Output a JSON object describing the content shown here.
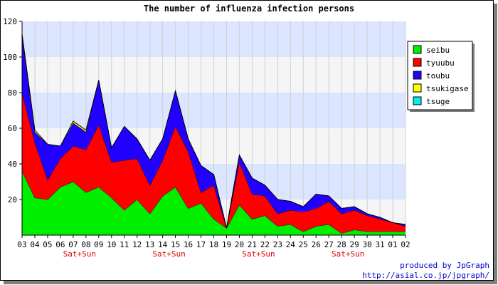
{
  "chart_data": {
    "type": "area",
    "stacked": true,
    "title": "The number of influenza infection persons",
    "xlabel": "",
    "ylabel": "",
    "ylim": [
      0,
      120
    ],
    "yticks": [
      20,
      40,
      60,
      80,
      100,
      120
    ],
    "y_tick_labels": [
      "20",
      "40",
      "60",
      "80",
      "100",
      "120"
    ],
    "categories": [
      "03",
      "04",
      "05",
      "06",
      "07",
      "08",
      "09",
      "10",
      "11",
      "12",
      "13",
      "14",
      "15",
      "16",
      "17",
      "18",
      "19",
      "20",
      "21",
      "22",
      "23",
      "24",
      "25",
      "26",
      "27",
      "28",
      "29",
      "30",
      "31",
      "01",
      "02"
    ],
    "weekend_markers": [
      {
        "after_category": "07",
        "label": "Sat+Sun"
      },
      {
        "after_category": "14",
        "label": "Sat+Sun"
      },
      {
        "after_category": "21",
        "label": "Sat+Sun"
      },
      {
        "after_category": "28",
        "label": "Sat+Sun"
      }
    ],
    "series": [
      {
        "name": "seibu",
        "color": "#00ee00",
        "values": [
          36,
          21,
          20,
          27,
          30,
          24,
          27,
          21,
          14,
          20,
          12,
          22,
          27,
          15,
          18,
          9,
          4,
          17,
          9,
          11,
          5,
          6,
          2,
          5,
          6,
          1,
          3,
          2,
          2,
          2,
          2
        ]
      },
      {
        "name": "tyuubu",
        "color": "#ff0000",
        "values": [
          44,
          31,
          11,
          16,
          20,
          24,
          35,
          20,
          28,
          23,
          16,
          20,
          34,
          32,
          6,
          19,
          0,
          24,
          14,
          11,
          7,
          8,
          11,
          10,
          13,
          11,
          11,
          9,
          7,
          5,
          3
        ]
      },
      {
        "name": "toubu",
        "color": "#2200ff",
        "values": [
          32,
          6,
          20,
          7,
          13,
          10,
          25,
          8,
          19,
          11,
          14,
          12,
          20,
          7,
          15,
          6,
          0,
          4,
          9,
          6,
          8,
          5,
          3,
          8,
          3,
          3,
          2,
          1,
          1,
          0,
          1
        ]
      },
      {
        "name": "tsukigase",
        "color": "#ffff00",
        "values": [
          1,
          1,
          0,
          0,
          1,
          1,
          0,
          0,
          0,
          0,
          0,
          0,
          0,
          0,
          0,
          0,
          0,
          0,
          0,
          0,
          0,
          0,
          0,
          0,
          0,
          0,
          0,
          0,
          0,
          0,
          0
        ]
      },
      {
        "name": "tsuge",
        "color": "#00eeee",
        "values": [
          0,
          0,
          0,
          0,
          0,
          0,
          0,
          0,
          0,
          0,
          0,
          0,
          0,
          0,
          0,
          0,
          0,
          0,
          0,
          0,
          0,
          0,
          0,
          0,
          0,
          0,
          0,
          0,
          0,
          0,
          0
        ]
      }
    ],
    "legend_position": "top-right",
    "grid": true,
    "band_colors": [
      "#f5f5f5",
      "#dbe5ff"
    ]
  },
  "footer": {
    "credit_line1": "produced by JpGraph",
    "credit_line2": "http://asial.co.jp/jpgraph/"
  }
}
